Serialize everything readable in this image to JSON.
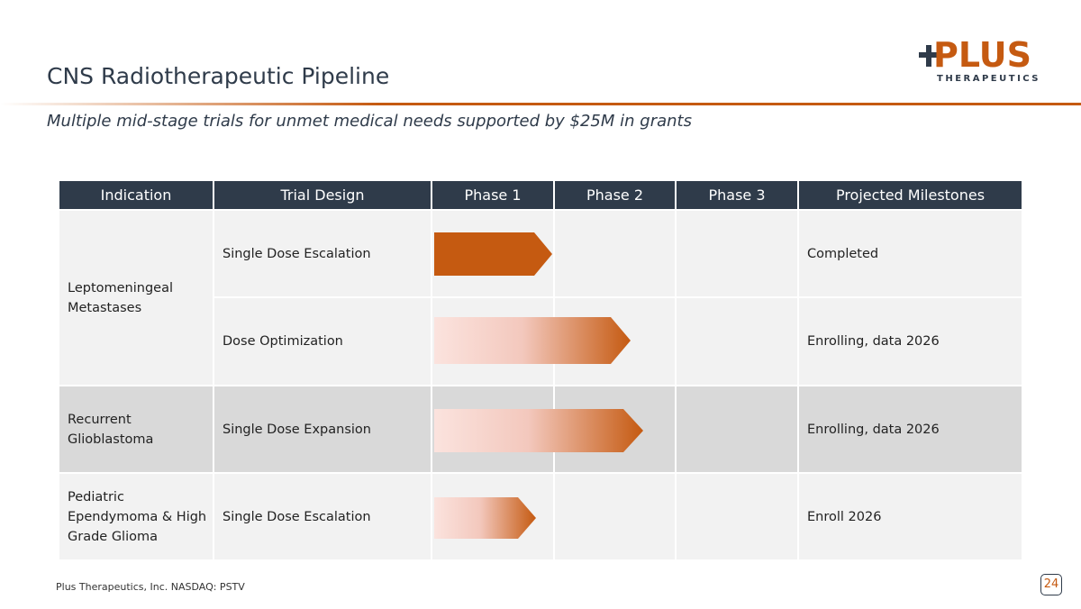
{
  "header": {
    "title": "CNS Radiotherapeutic Pipeline",
    "subtitle": "Multiple mid-stage trials for unmet medical needs supported by $25M in grants"
  },
  "logo": {
    "name": "PLUS",
    "tagline": "THERAPEUTICS"
  },
  "table": {
    "columns": [
      "Indication",
      "Trial Design",
      "Phase 1",
      "Phase 2",
      "Phase 3",
      "Projected Milestones"
    ],
    "rows": [
      [
        "Leptomeningeal Metastases",
        "Single Dose Escalation",
        "Completed"
      ],
      [
        null,
        "Dose Optimization",
        "Enrolling, data 2026"
      ],
      [
        "Recurrent Glioblastoma",
        "Single Dose Expansion",
        "Enrolling, data 2026"
      ],
      [
        "Pediatric Ependymoma & High Grade Glioma",
        "Single Dose Escalation",
        "Enroll 2026"
      ]
    ]
  },
  "footer": {
    "company": "Plus Therapeutics, Inc.  NASDAQ:  PSTV",
    "page": "24"
  }
}
